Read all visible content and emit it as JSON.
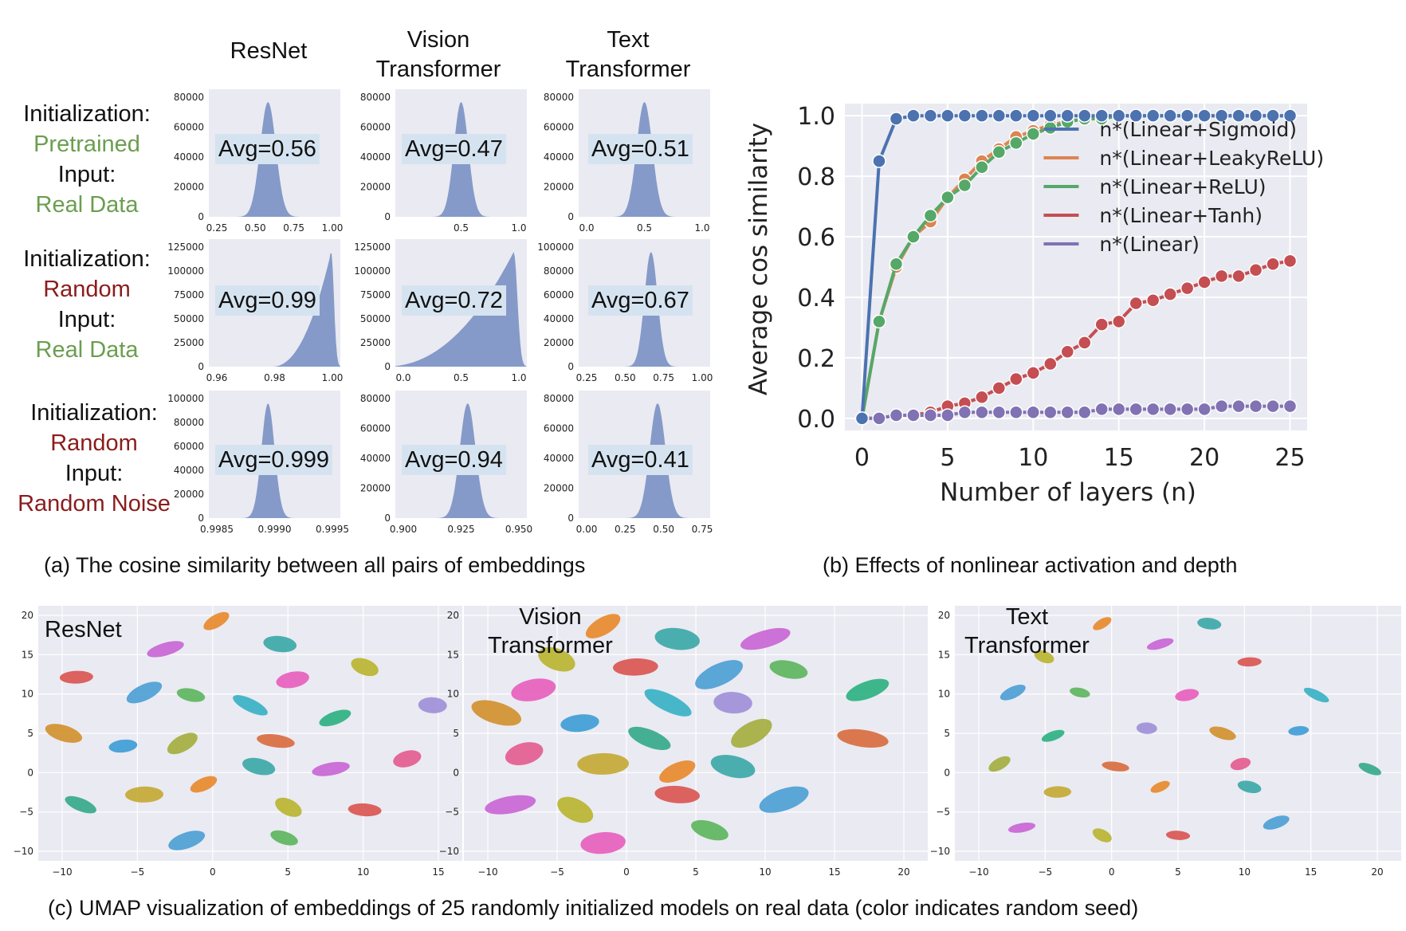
{
  "panel_a": {
    "column_headers": [
      "ResNet",
      "Vision Transformer",
      "Text Transformer"
    ],
    "rows": [
      {
        "init_label": "Initialization:",
        "init_value": "Pretrained",
        "input_label": "Input:",
        "input_value": "Real Data",
        "init_color": "#6b9e4f",
        "input_color": "#6b9e4f"
      },
      {
        "init_label": "Initialization:",
        "init_value": "Random",
        "input_label": "Input:",
        "input_value": "Real Data",
        "init_color": "#8b1c1c",
        "input_color": "#6b9e4f"
      },
      {
        "init_label": "Initialization:",
        "init_value": "Random",
        "input_label": "Input:",
        "input_value": "Random Noise",
        "init_color": "#8b1c1c",
        "input_color": "#8b1c1c"
      }
    ],
    "histograms": [
      [
        {
          "avg": "Avg=0.56",
          "yticks": [
            "80000",
            "60000",
            "40000",
            "20000",
            "0"
          ],
          "xticks": [
            "0.25",
            "0.50",
            "0.75",
            "1.00"
          ]
        },
        {
          "avg": "Avg=0.47",
          "yticks": [
            "80000",
            "60000",
            "40000",
            "20000",
            "0"
          ],
          "xticks": [
            "0.5",
            "1.0"
          ]
        },
        {
          "avg": "Avg=0.51",
          "yticks": [
            "80000",
            "60000",
            "40000",
            "20000",
            "0"
          ],
          "xticks": [
            "0.0",
            "0.5",
            "1.0"
          ]
        }
      ],
      [
        {
          "avg": "Avg=0.99",
          "yticks": [
            "125000",
            "100000",
            "75000",
            "50000",
            "25000",
            "0"
          ],
          "xticks": [
            "0.96",
            "0.98",
            "1.00"
          ]
        },
        {
          "avg": "Avg=0.72",
          "yticks": [
            "125000",
            "100000",
            "75000",
            "50000",
            "25000",
            "0"
          ],
          "xticks": [
            "0.0",
            "0.5",
            "1.0"
          ]
        },
        {
          "avg": "Avg=0.67",
          "yticks": [
            "100000",
            "80000",
            "60000",
            "40000",
            "20000",
            "0"
          ],
          "xticks": [
            "0.25",
            "0.50",
            "0.75",
            "1.00"
          ]
        }
      ],
      [
        {
          "avg": "Avg=0.999",
          "yticks": [
            "100000",
            "80000",
            "60000",
            "40000",
            "20000",
            "0"
          ],
          "xticks": [
            "0.9985",
            "0.9990",
            "0.9995"
          ]
        },
        {
          "avg": "Avg=0.94",
          "yticks": [
            "80000",
            "60000",
            "40000",
            "20000",
            "0"
          ],
          "xticks": [
            "0.900",
            "0.925",
            "0.950"
          ]
        },
        {
          "avg": "Avg=0.41",
          "yticks": [
            "80000",
            "60000",
            "40000",
            "20000",
            "0"
          ],
          "xticks": [
            "0.00",
            "0.25",
            "0.50",
            "0.75"
          ]
        }
      ]
    ],
    "caption": "(a) The cosine similarity between all pairs of embeddings",
    "hist_color": "#8096c5"
  },
  "chart_data": {
    "type": "line",
    "xlabel": "Number of layers (n)",
    "ylabel": "Average cos similarity",
    "xlim": [
      -1,
      26
    ],
    "ylim": [
      -0.04,
      1.04
    ],
    "xticks": [
      "0",
      "5",
      "10",
      "15",
      "20",
      "25"
    ],
    "yticks": [
      "0.0",
      "0.2",
      "0.4",
      "0.6",
      "0.8",
      "1.0"
    ],
    "legend_position": "center-right",
    "grid": true,
    "x": [
      0,
      1,
      2,
      3,
      4,
      5,
      6,
      7,
      8,
      9,
      10,
      11,
      12,
      13,
      14,
      15,
      16,
      17,
      18,
      19,
      20,
      21,
      22,
      23,
      24,
      25
    ],
    "series": [
      {
        "name": "n*(Linear+Sigmoid)",
        "color": "#4c72b0",
        "values": [
          0.0,
          0.85,
          0.99,
          1.0,
          1.0,
          1.0,
          1.0,
          1.0,
          1.0,
          1.0,
          1.0,
          1.0,
          1.0,
          1.0,
          1.0,
          1.0,
          1.0,
          1.0,
          1.0,
          1.0,
          1.0,
          1.0,
          1.0,
          1.0,
          1.0,
          1.0
        ]
      },
      {
        "name": "n*(Linear+LeakyReLU)",
        "color": "#dd8452",
        "values": [
          0.0,
          0.32,
          0.5,
          0.6,
          0.65,
          0.73,
          0.79,
          0.85,
          0.89,
          0.93,
          0.95,
          0.97,
          0.98,
          0.99,
          0.99,
          1.0,
          1.0,
          1.0,
          1.0,
          1.0,
          1.0,
          1.0,
          1.0,
          1.0,
          1.0,
          1.0
        ]
      },
      {
        "name": "n*(Linear+ReLU)",
        "color": "#55a868",
        "values": [
          0.0,
          0.32,
          0.51,
          0.6,
          0.67,
          0.73,
          0.77,
          0.83,
          0.88,
          0.91,
          0.94,
          0.96,
          0.98,
          0.99,
          0.99,
          1.0,
          1.0,
          1.0,
          1.0,
          1.0,
          1.0,
          1.0,
          1.0,
          1.0,
          1.0,
          1.0
        ]
      },
      {
        "name": "n*(Linear+Tanh)",
        "color": "#c44e52",
        "values": [
          0.0,
          0.0,
          0.01,
          0.01,
          0.02,
          0.04,
          0.05,
          0.07,
          0.1,
          0.13,
          0.15,
          0.18,
          0.22,
          0.25,
          0.31,
          0.32,
          0.38,
          0.39,
          0.41,
          0.43,
          0.45,
          0.47,
          0.47,
          0.49,
          0.51,
          0.52
        ]
      },
      {
        "name": "n*(Linear)",
        "color": "#8172b3",
        "values": [
          0.0,
          0.0,
          0.01,
          0.01,
          0.01,
          0.01,
          0.02,
          0.02,
          0.02,
          0.02,
          0.02,
          0.02,
          0.02,
          0.02,
          0.03,
          0.03,
          0.03,
          0.03,
          0.03,
          0.03,
          0.03,
          0.04,
          0.04,
          0.04,
          0.04,
          0.04
        ]
      }
    ]
  },
  "panel_b": {
    "caption": "(b) Effects of nonlinear activation and depth"
  },
  "panel_c": {
    "caption": "(c) UMAP visualization of embeddings of 25 randomly initialized models on real data (color indicates random seed)",
    "plots": [
      {
        "title": "ResNet",
        "xticks": [
          "−10",
          "−5",
          "0",
          "5",
          "10",
          "15"
        ],
        "yticks": [
          "20",
          "15",
          "10",
          "5",
          "0",
          "−5",
          "−10"
        ]
      },
      {
        "title": "Vision Transformer",
        "xticks": [
          "−10",
          "−5",
          "0",
          "5",
          "10",
          "15",
          "20"
        ],
        "yticks": [
          "20",
          "15",
          "10",
          "5",
          "0",
          "−5",
          "−10"
        ]
      },
      {
        "title": "Text Transformer",
        "xticks": [
          "−10",
          "−5",
          "0",
          "5",
          "10",
          "15",
          "20"
        ],
        "yticks": [
          "20",
          "15",
          "10",
          "5",
          "0",
          "−5",
          "−10"
        ]
      }
    ],
    "palette": [
      "#e8882a",
      "#3aa7a6",
      "#c864d4",
      "#b8b42e",
      "#d9534f",
      "#4a9fd4",
      "#5bb55b",
      "#e85dbd",
      "#36b0c4",
      "#9e8ed8",
      "#2ab080",
      "#d28f2a",
      "#3c9cd6",
      "#a3ad3c",
      "#d86a3c",
      "#e35a8e",
      "#33a889",
      "#c4a832"
    ]
  }
}
